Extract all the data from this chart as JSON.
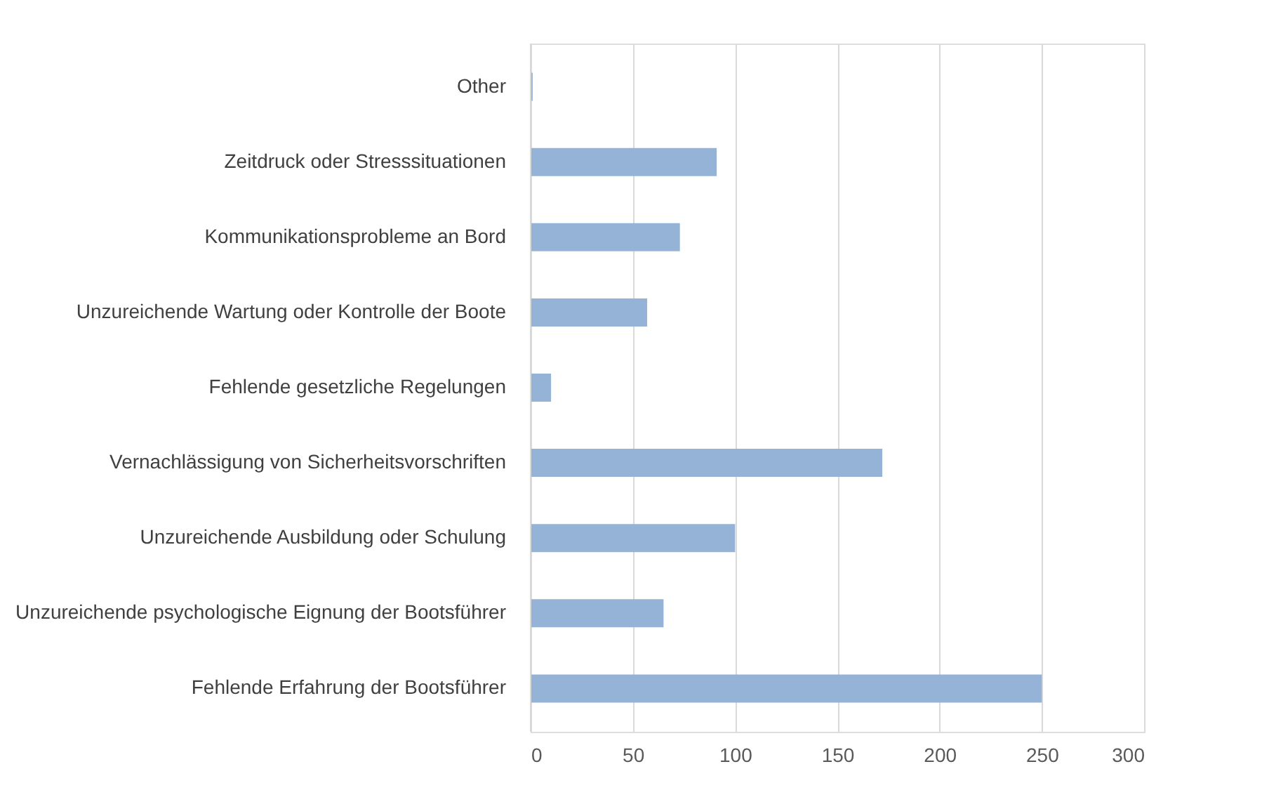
{
  "chart_data": {
    "type": "bar",
    "orientation": "horizontal",
    "categories": [
      "Other",
      "Zeitdruck oder Stresssituationen",
      "Kommunikationsprobleme an Bord",
      "Unzureichende Wartung oder Kontrolle der Boote",
      "Fehlende gesetzliche Regelungen",
      "Vernachlässigung von Sicherheitsvorschriften",
      "Unzureichende Ausbildung oder Schulung",
      "Unzureichende psychologische Eignung der Bootsführer",
      "Fehlende Erfahrung der Bootsführer"
    ],
    "values": [
      1,
      91,
      73,
      57,
      10,
      172,
      100,
      65,
      250
    ],
    "color": "#95b3d7",
    "xlim": [
      0,
      300
    ],
    "xticks": [
      0,
      50,
      100,
      150,
      200,
      250,
      300
    ],
    "grid": "x"
  }
}
